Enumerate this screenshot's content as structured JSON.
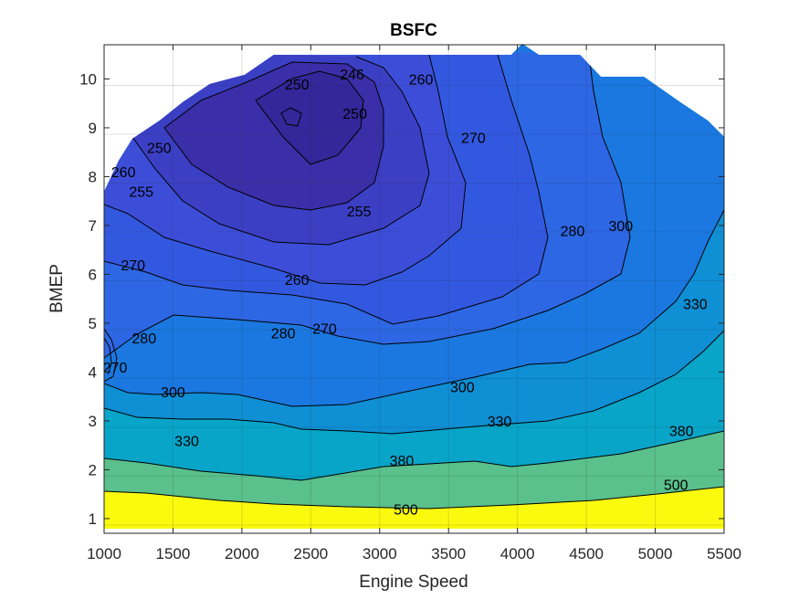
{
  "chart_data": {
    "type": "contour",
    "title": "BSFC",
    "xlabel": "Engine Speed",
    "ylabel": "BMEP",
    "xlim": [
      1000,
      5500
    ],
    "ylim": [
      0.7,
      10.7
    ],
    "xticks": [
      "1000",
      "1500",
      "2000",
      "2500",
      "3000",
      "3500",
      "4000",
      "4500",
      "5000",
      "5500"
    ],
    "yticks": [
      "1",
      "2",
      "3",
      "4",
      "5",
      "6",
      "7",
      "8",
      "9",
      "10"
    ],
    "grid": true,
    "levels": [
      246,
      250,
      255,
      260,
      270,
      280,
      300,
      330,
      380,
      500
    ],
    "level_colors": [
      "#33279a",
      "#3a2fa8",
      "#3b3fc4",
      "#3c4ed8",
      "#3358e0",
      "#2d67e4",
      "#1a78e0",
      "#0f8fd4",
      "#08a5c9",
      "#5ac08c",
      "#fafa0f"
    ],
    "contour_labels": [
      {
        "text": "246",
        "x": 2800,
        "y": 10.1
      },
      {
        "text": "250",
        "x": 2400,
        "y": 9.9
      },
      {
        "text": "250",
        "x": 2820,
        "y": 9.3
      },
      {
        "text": "250",
        "x": 1400,
        "y": 8.6
      },
      {
        "text": "255",
        "x": 1270,
        "y": 7.7
      },
      {
        "text": "255",
        "x": 2850,
        "y": 7.3
      },
      {
        "text": "260",
        "x": 3300,
        "y": 10.0
      },
      {
        "text": "260",
        "x": 1140,
        "y": 8.1
      },
      {
        "text": "260",
        "x": 2400,
        "y": 5.9
      },
      {
        "text": "270",
        "x": 3680,
        "y": 8.8
      },
      {
        "text": "270",
        "x": 1210,
        "y": 6.2
      },
      {
        "text": "270",
        "x": 2600,
        "y": 4.9
      },
      {
        "text": "270",
        "x": 1080,
        "y": 4.1
      },
      {
        "text": "280",
        "x": 1290,
        "y": 4.7
      },
      {
        "text": "280",
        "x": 4400,
        "y": 6.9
      },
      {
        "text": "280",
        "x": 2300,
        "y": 4.8
      },
      {
        "text": "300",
        "x": 4750,
        "y": 7.0
      },
      {
        "text": "300",
        "x": 3600,
        "y": 3.7
      },
      {
        "text": "300",
        "x": 1500,
        "y": 3.6
      },
      {
        "text": "330",
        "x": 5290,
        "y": 5.4
      },
      {
        "text": "330",
        "x": 3870,
        "y": 3.0
      },
      {
        "text": "330",
        "x": 1600,
        "y": 2.6
      },
      {
        "text": "380",
        "x": 5190,
        "y": 2.8
      },
      {
        "text": "380",
        "x": 3160,
        "y": 2.2
      },
      {
        "text": "500",
        "x": 5150,
        "y": 1.7
      },
      {
        "text": "500",
        "x": 3190,
        "y": 1.2
      }
    ]
  }
}
